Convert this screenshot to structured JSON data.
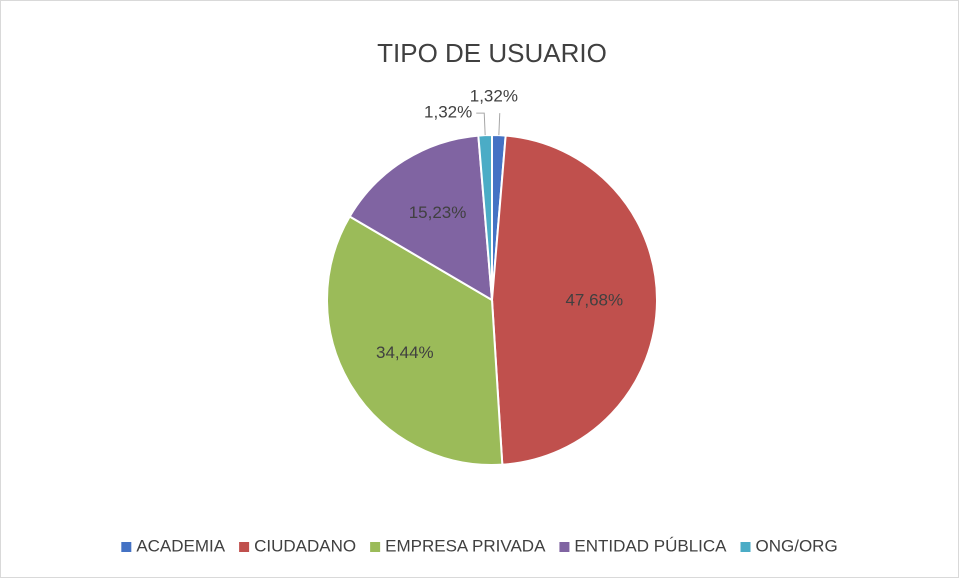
{
  "chart_data": {
    "type": "pie",
    "title": "TIPO DE USUARIO",
    "categories": [
      "ACADEMIA",
      "CIUDADANO",
      "EMPRESA PRIVADA",
      "ENTIDAD PÚBLICA",
      "ONG/ORG"
    ],
    "values": [
      1.32,
      47.68,
      34.44,
      15.23,
      1.32
    ],
    "value_labels": [
      "1,32%",
      "47,68%",
      "34,44%",
      "15,23%",
      "1,32%"
    ],
    "colors": [
      "#4472c4",
      "#c0504d",
      "#9bbb59",
      "#8064a2",
      "#4bacc6"
    ],
    "legend": "bottom"
  }
}
